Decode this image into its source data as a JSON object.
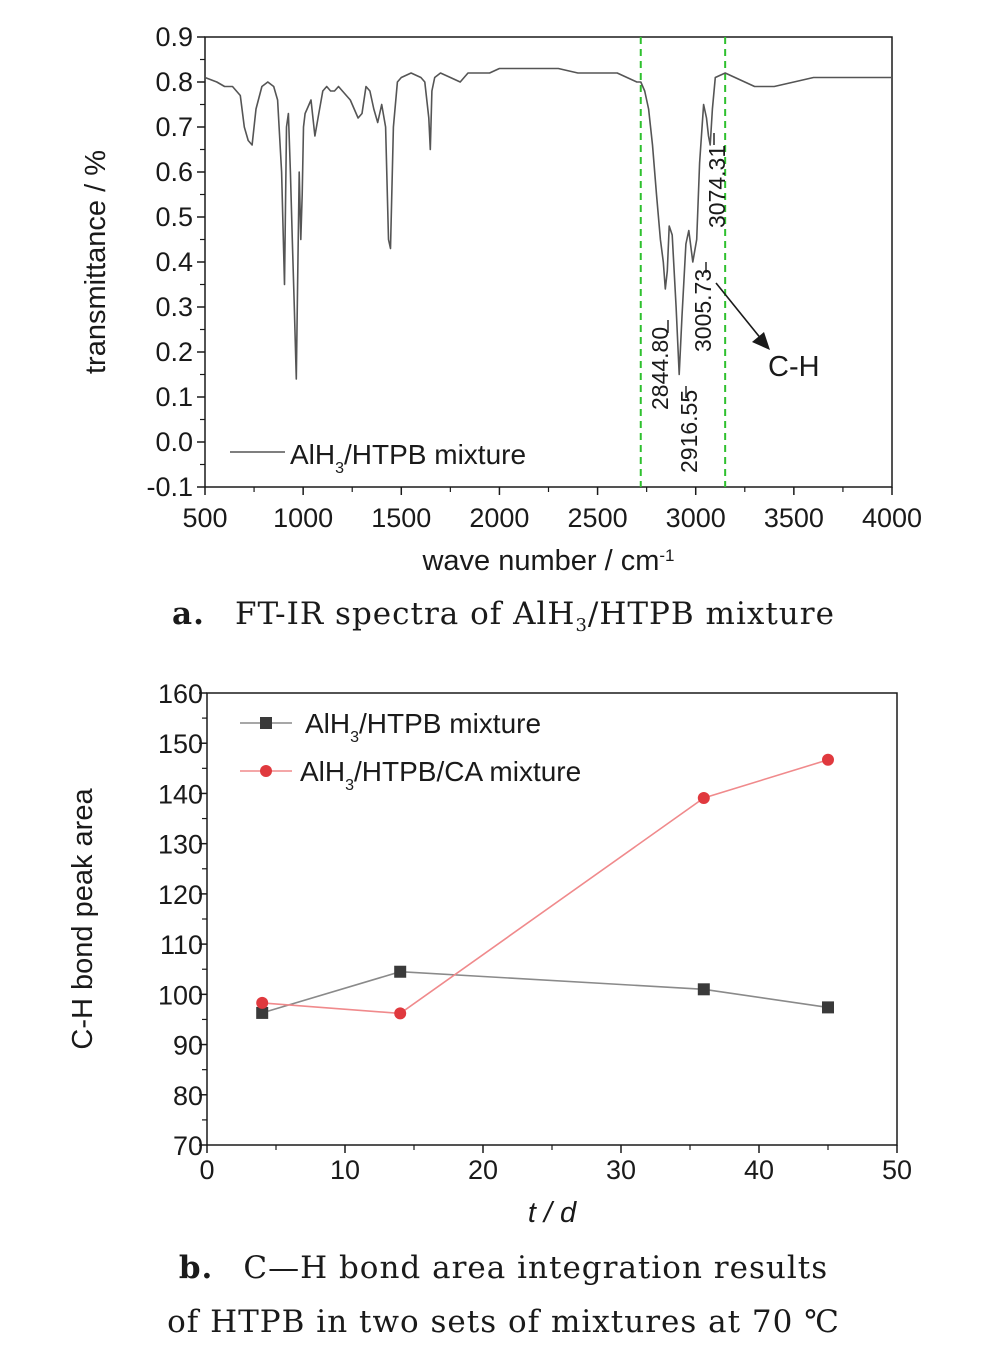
{
  "chart_data": [
    {
      "type": "line",
      "panel": "a",
      "xlabel": "wave number / cm",
      "xlabel_sup": "-1",
      "ylabel": "transmittance / %",
      "xlim": [
        500,
        4000
      ],
      "ylim": [
        -0.1,
        0.9
      ],
      "xticks": [
        "500",
        "1000",
        "1500",
        "2000",
        "2500",
        "3000",
        "3500",
        "4000"
      ],
      "yticks": [
        "-0.1",
        "0.0",
        "0.1",
        "0.2",
        "0.3",
        "0.4",
        "0.5",
        "0.6",
        "0.7",
        "0.8",
        "0.9"
      ],
      "vlines": [
        2720,
        3150
      ],
      "vline_color": "#2ec02e",
      "series_color": "#555555",
      "legend": {
        "prefix": "AlH",
        "sub": "3",
        "suffix": "/HTPB mixture"
      },
      "annotations": [
        "2844.80",
        "2916.55",
        "3005.73",
        "3074.31"
      ],
      "arrow_label": "C-H",
      "series": [
        {
          "x": [
            500,
            560,
            600,
            640,
            680,
            700,
            720,
            740,
            760,
            790,
            820,
            850,
            870,
            890,
            905,
            915,
            925,
            935,
            945,
            955,
            965,
            972,
            980,
            988,
            995,
            1002,
            1010,
            1020,
            1040,
            1060,
            1080,
            1100,
            1120,
            1140,
            1160,
            1180,
            1200,
            1240,
            1280,
            1300,
            1320,
            1340,
            1360,
            1380,
            1400,
            1420,
            1435,
            1445,
            1460,
            1480,
            1500,
            1550,
            1600,
            1620,
            1640,
            1648,
            1656,
            1670,
            1700,
            1750,
            1800,
            1820,
            1840,
            1880,
            1950,
            2000,
            2100,
            2200,
            2300,
            2400,
            2500,
            2600,
            2650,
            2700,
            2720,
            2740,
            2760,
            2780,
            2800,
            2820,
            2835,
            2845,
            2855,
            2865,
            2880,
            2900,
            2916,
            2930,
            2950,
            2965,
            2985,
            3005,
            3020,
            3040,
            3055,
            3065,
            3074,
            3085,
            3100,
            3150,
            3200,
            3300,
            3400,
            3500,
            3600,
            3700,
            3800,
            3900,
            4000
          ],
          "y": [
            0.81,
            0.8,
            0.79,
            0.79,
            0.77,
            0.7,
            0.67,
            0.66,
            0.74,
            0.79,
            0.8,
            0.79,
            0.76,
            0.6,
            0.35,
            0.7,
            0.73,
            0.6,
            0.45,
            0.3,
            0.14,
            0.35,
            0.6,
            0.45,
            0.55,
            0.7,
            0.73,
            0.74,
            0.76,
            0.68,
            0.73,
            0.78,
            0.79,
            0.78,
            0.78,
            0.79,
            0.78,
            0.76,
            0.72,
            0.73,
            0.79,
            0.78,
            0.74,
            0.71,
            0.75,
            0.7,
            0.45,
            0.43,
            0.7,
            0.8,
            0.81,
            0.82,
            0.81,
            0.8,
            0.72,
            0.65,
            0.78,
            0.81,
            0.82,
            0.81,
            0.8,
            0.81,
            0.82,
            0.82,
            0.82,
            0.83,
            0.83,
            0.83,
            0.83,
            0.82,
            0.82,
            0.82,
            0.81,
            0.8,
            0.8,
            0.78,
            0.74,
            0.66,
            0.55,
            0.45,
            0.4,
            0.34,
            0.38,
            0.48,
            0.46,
            0.3,
            0.15,
            0.28,
            0.44,
            0.47,
            0.4,
            0.45,
            0.62,
            0.75,
            0.72,
            0.68,
            0.66,
            0.74,
            0.81,
            0.82,
            0.81,
            0.79,
            0.79,
            0.8,
            0.81,
            0.81,
            0.81,
            0.81,
            0.81
          ]
        }
      ]
    },
    {
      "type": "line",
      "panel": "b",
      "xlabel": "t / d",
      "ylabel": "C-H bond peak area",
      "xlim": [
        0,
        50
      ],
      "ylim": [
        70,
        160
      ],
      "xticks": [
        "0",
        "10",
        "20",
        "30",
        "40",
        "50"
      ],
      "yticks": [
        "70",
        "80",
        "90",
        "100",
        "110",
        "120",
        "130",
        "140",
        "150",
        "160"
      ],
      "series": [
        {
          "legend": {
            "prefix": "AlH",
            "sub": "3",
            "suffix": "/HTPB mixture"
          },
          "color": "#3a3a3a",
          "line_color": "#8a8a8a",
          "marker": "square",
          "x": [
            4,
            14,
            36,
            45
          ],
          "y": [
            96.3,
            104.5,
            101.0,
            97.4
          ]
        },
        {
          "legend": {
            "prefix": "AlH",
            "sub": "3",
            "suffix": "/HTPB/CA mixture"
          },
          "color": "#e0393e",
          "line_color": "#f08a8c",
          "marker": "circle",
          "x": [
            4,
            14,
            36,
            45
          ],
          "y": [
            98.3,
            96.2,
            139.1,
            146.7
          ]
        }
      ]
    }
  ],
  "captions": {
    "a": {
      "letter": "a.",
      "pre": "FT-IR spectra of AlH",
      "sub": "3",
      "post": "/HTPB mixture"
    },
    "b": {
      "letter": "b.",
      "line1": "C—H bond area integration results",
      "line2": "of HTPB in two sets of mixtures at 70 ℃"
    }
  }
}
